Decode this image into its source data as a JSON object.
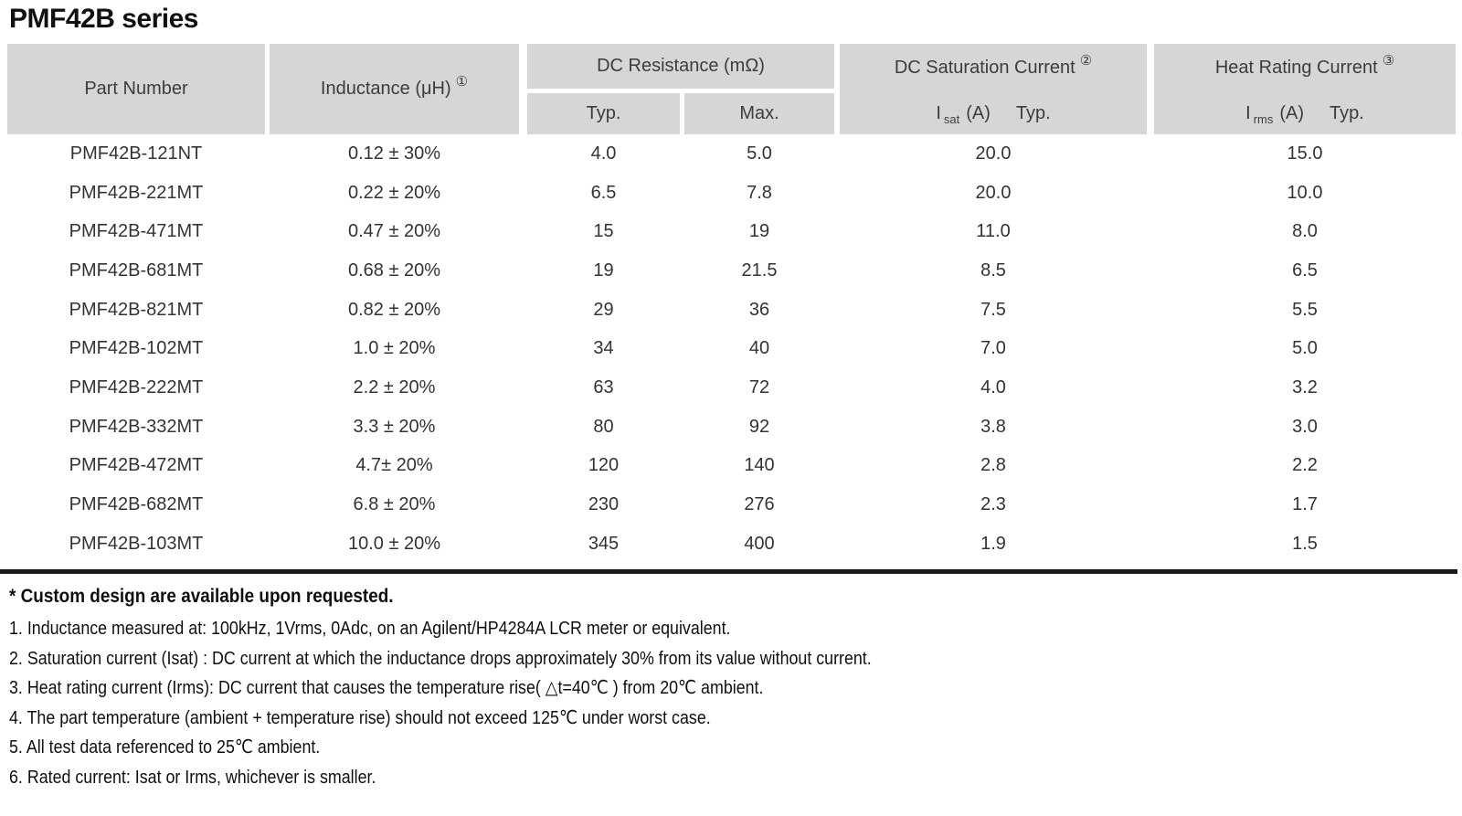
{
  "title": "PMF42B series",
  "colors": {
    "header_bg": "#d6d6d6",
    "header_text": "#3c3c3c",
    "body_text": "#333333",
    "rule": "#1a1a1a"
  },
  "table": {
    "header": {
      "part_number": "Part Number",
      "inductance": "Inductance (μH)",
      "inductance_ref": "①",
      "dc_resistance": "DC Resistance (mΩ)",
      "dcr_typ": "Typ.",
      "dcr_max": "Max.",
      "dc_saturation": "DC Saturation Current",
      "dc_saturation_ref": "②",
      "isat_symbol": "I",
      "isat_sub": "sat",
      "isat_unit": "(A)",
      "isat_qual": "Typ.",
      "heat_rating": "Heat Rating Current",
      "heat_rating_ref": "③",
      "irms_symbol": "I",
      "irms_sub": "rms",
      "irms_unit": "(A)",
      "irms_qual": "Typ."
    },
    "rows": [
      {
        "part": "PMF42B-121NT",
        "inductance": "0.12 ± 30%",
        "typ": "4.0",
        "max": "5.0",
        "isat": "20.0",
        "irms": "15.0"
      },
      {
        "part": "PMF42B-221MT",
        "inductance": "0.22 ± 20%",
        "typ": "6.5",
        "max": "7.8",
        "isat": "20.0",
        "irms": "10.0"
      },
      {
        "part": "PMF42B-471MT",
        "inductance": "0.47 ± 20%",
        "typ": "15",
        "max": "19",
        "isat": "11.0",
        "irms": "8.0"
      },
      {
        "part": "PMF42B-681MT",
        "inductance": "0.68 ± 20%",
        "typ": "19",
        "max": "21.5",
        "isat": "8.5",
        "irms": "6.5"
      },
      {
        "part": "PMF42B-821MT",
        "inductance": "0.82 ± 20%",
        "typ": "29",
        "max": "36",
        "isat": "7.5",
        "irms": "5.5"
      },
      {
        "part": "PMF42B-102MT",
        "inductance": "1.0 ± 20%",
        "typ": "34",
        "max": "40",
        "isat": "7.0",
        "irms": "5.0"
      },
      {
        "part": "PMF42B-222MT",
        "inductance": "2.2 ± 20%",
        "typ": "63",
        "max": "72",
        "isat": "4.0",
        "irms": "3.2"
      },
      {
        "part": "PMF42B-332MT",
        "inductance": "3.3 ± 20%",
        "typ": "80",
        "max": "92",
        "isat": "3.8",
        "irms": "3.0"
      },
      {
        "part": "PMF42B-472MT",
        "inductance": "4.7± 20%",
        "typ": "120",
        "max": "140",
        "isat": "2.8",
        "irms": "2.2"
      },
      {
        "part": "PMF42B-682MT",
        "inductance": "6.8 ± 20%",
        "typ": "230",
        "max": "276",
        "isat": "2.3",
        "irms": "1.7"
      },
      {
        "part": "PMF42B-103MT",
        "inductance": "10.0 ± 20%",
        "typ": "345",
        "max": "400",
        "isat": "1.9",
        "irms": "1.5"
      }
    ]
  },
  "footnotes": {
    "custom": "* Custom design are available upon requested.",
    "notes": [
      "1. Inductance measured at: 100kHz, 1Vrms, 0Adc, on an Agilent/HP4284A LCR meter or equivalent.",
      "2. Saturation current (Isat) : DC current at which the inductance drops approximately 30% from its value without current.",
      "3. Heat rating current (Irms): DC current that causes the temperature rise( △t=40℃ ) from 20℃ ambient.",
      "4. The part temperature (ambient + temperature rise) should not exceed 125℃ under worst case.",
      "5. All test data referenced to 25℃ ambient.",
      "6. Rated current: Isat or Irms, whichever is smaller."
    ]
  }
}
